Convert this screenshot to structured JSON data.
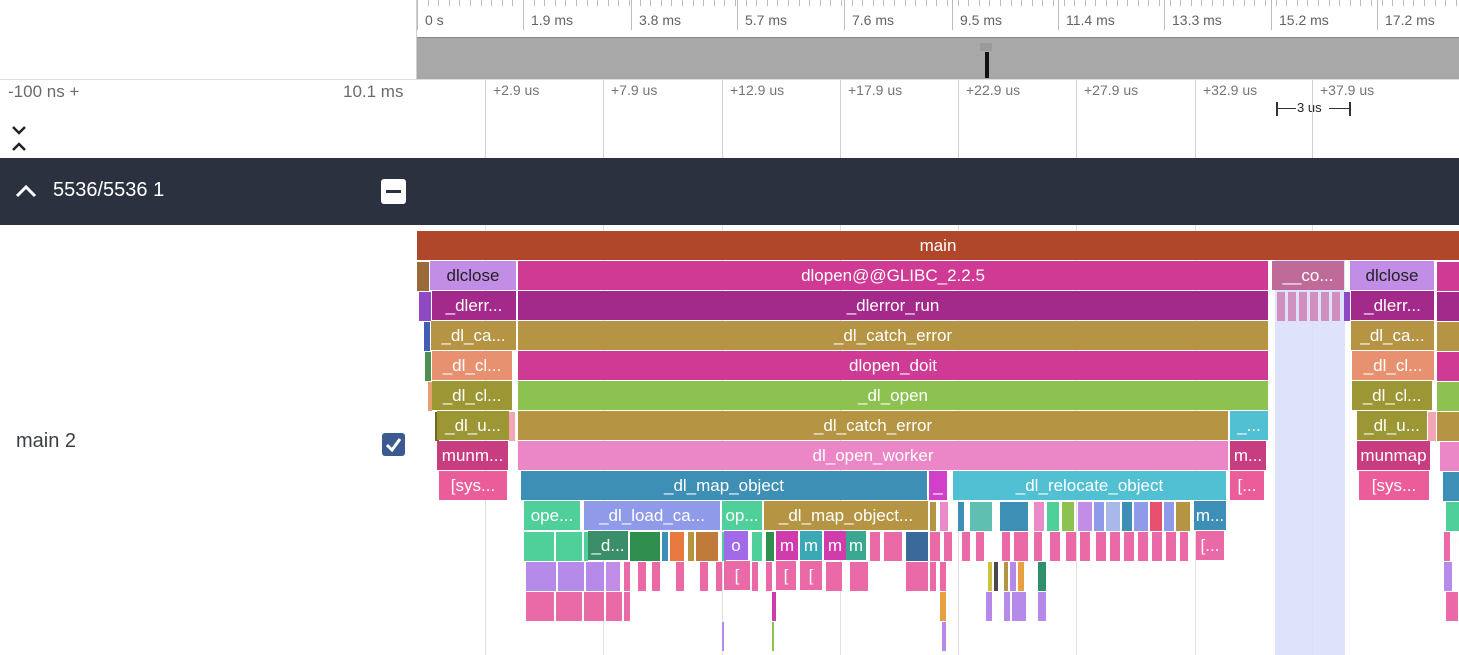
{
  "top_ruler": {
    "labels": [
      "0 s",
      "1.9 ms",
      "3.8 ms",
      "5.7 ms",
      "7.6 ms",
      "9.5 ms",
      "11.4 ms",
      "13.3 ms",
      "15.2 ms",
      "17.2 ms"
    ]
  },
  "detail_ruler": {
    "range_start": "-100 ns +",
    "range_end": "10.1 ms",
    "labels": [
      "+2.9 us",
      "+7.9 us",
      "+12.9 us",
      "+17.9 us",
      "+22.9 us",
      "+27.9 us",
      "+32.9 us",
      "+37.9 us"
    ],
    "measure_label": "3 us"
  },
  "group": {
    "title": "5536/5536 1"
  },
  "track": {
    "name": "main 2",
    "checked": true
  },
  "slices": {
    "main": "main",
    "dlclose_a": "dlclose",
    "dlopen": "dlopen@@GLIBC_2.2.5",
    "co": "__co...",
    "dlclose_b": "dlclose",
    "dlerr_a": "_dlerr...",
    "dlerror_run": "_dlerror_run",
    "dlerr_b": "_dlerr...",
    "dlca_a": "_dl_ca...",
    "catch1": "_dl_catch_error",
    "dlca_b": "_dl_ca...",
    "dlcl1_a": "_dl_cl...",
    "dlopen_doit": "dlopen_doit",
    "dlcl1_b": "_dl_cl...",
    "dlcl2_a": "_dl_cl...",
    "dl_open": "_dl_open",
    "dlcl2_b": "_dl_cl...",
    "dlu_a": "_dl_u...",
    "catch2": "_dl_catch_error",
    "dot_a": "_...",
    "dlu_b": "_dl_u...",
    "munm_a": "munm...",
    "worker": "dl_open_worker",
    "m_a": "m...",
    "munmap_b": "munmap",
    "sys_a": "[sys...",
    "map_object": "_dl_map_object",
    "u_a": "_",
    "relocate": "_dl_relocate_object",
    "br_a": "[...",
    "sys_b": "[sys...",
    "ope": "ope...",
    "load_ca": "_dl_load_ca...",
    "op": "op...",
    "map_object2": "_dl_map_object...",
    "m_b": "m...",
    "d_a": "_d...",
    "o_a": "o",
    "m1": "m",
    "m2": "m",
    "m3": "m",
    "m4": "m",
    "br_b": "[...",
    "br1": "[",
    "br2": "[",
    "br3": "["
  },
  "colors": {
    "main": "#b0472a",
    "dlopen": "#cf3a95",
    "dlclose": "#c28de6",
    "dlerror": "#a3298a",
    "catch": "#b59443",
    "cl_pink": "#e89171",
    "dl_open": "#8dc150",
    "olive": "#9c9634",
    "worker": "#eb87c7",
    "map_object": "#3e8fb5",
    "relocate": "#52c0d3",
    "green_sea": "#4fcf9a",
    "periwinkle": "#8f9ae8",
    "munmap": "#c83d7f",
    "highlight": "#d8defa",
    "group_header": "#2b313e"
  }
}
